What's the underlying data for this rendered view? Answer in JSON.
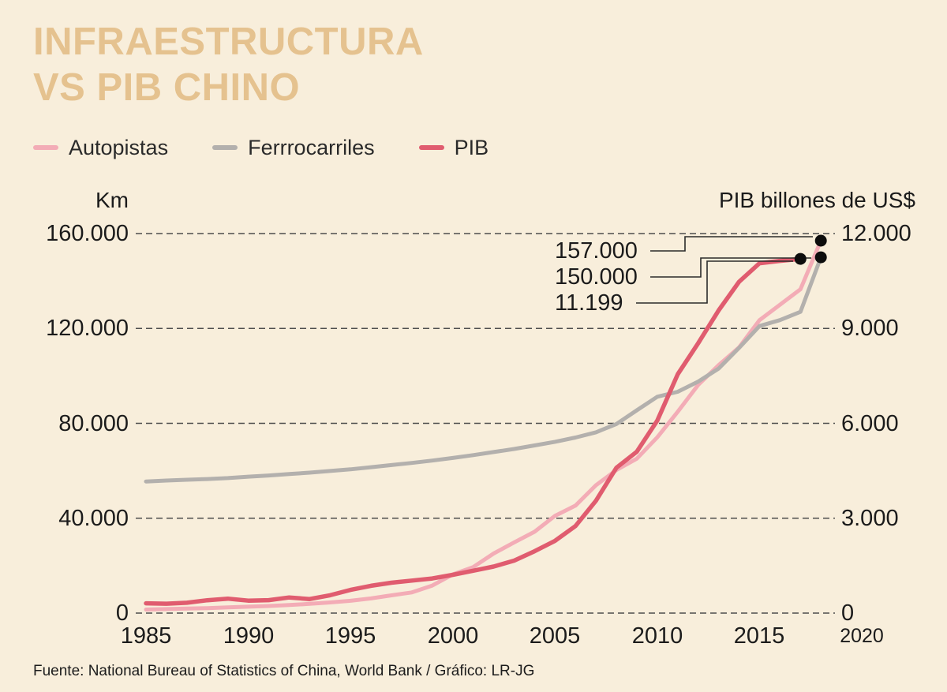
{
  "title": {
    "line1": "INFRAESTRUCTURA",
    "line2": "VS PIB CHINO"
  },
  "colors": {
    "background": "#f8eedb",
    "title": "#e5c28f",
    "text": "#1b1b1b",
    "grid": "#4d4d4d",
    "dot": "#0d0d0d"
  },
  "legend": {
    "items": [
      {
        "label": "Autopistas",
        "color": "#f3acb6"
      },
      {
        "label": "Ferrrocarriles",
        "color": "#b3b0ad"
      },
      {
        "label": "PIB",
        "color": "#e05c6f"
      }
    ]
  },
  "footer": {
    "text": "Fuente: National Bureau of Statistics of China, World Bank / Gráfico: LR-JG"
  },
  "chart_data": {
    "type": "line",
    "title": "INFRAESTRUCTURA VS PIB CHINO",
    "grid": {
      "style": "dashed",
      "orientation": "horizontal"
    },
    "x_range": [
      1985,
      2020
    ],
    "x_ticks": [
      1985,
      1990,
      1995,
      2000,
      2005,
      2010,
      2015,
      2020
    ],
    "left_axis": {
      "label": "Km",
      "min": 0,
      "max": 160000,
      "ticks": [
        "160.000",
        "120.000",
        "80.000",
        "40.000",
        "0"
      ]
    },
    "right_axis": {
      "label": "PIB billones de US$",
      "min": 0,
      "max": 12000,
      "ticks": [
        "12.000",
        "9.000",
        "6.000",
        "3.000",
        "0"
      ]
    },
    "series": [
      {
        "name": "Autopistas",
        "axis": "left",
        "color": "#f3acb6",
        "stroke_width": 5,
        "x": [
          1985,
          1986,
          1987,
          1988,
          1989,
          1990,
          1991,
          1992,
          1993,
          1994,
          1995,
          1996,
          1997,
          1998,
          1999,
          2000,
          2001,
          2002,
          2003,
          2004,
          2005,
          2006,
          2007,
          2008,
          2009,
          2010,
          2011,
          2012,
          2013,
          2014,
          2015,
          2016,
          2017,
          2018
        ],
        "values": [
          1500,
          1700,
          1900,
          2100,
          2400,
          2700,
          3000,
          3400,
          3900,
          4500,
          5200,
          6200,
          7500,
          8700,
          11600,
          16300,
          19400,
          25100,
          29800,
          34300,
          41000,
          45300,
          53900,
          60300,
          65100,
          74100,
          84900,
          96200,
          104500,
          112000,
          123500,
          130000,
          136500,
          157000
        ]
      },
      {
        "name": "Ferrrocarriles",
        "axis": "left",
        "color": "#b3b0ad",
        "stroke_width": 5,
        "x": [
          1985,
          1986,
          1987,
          1988,
          1989,
          1990,
          1991,
          1992,
          1993,
          1994,
          1995,
          1996,
          1997,
          1998,
          1999,
          2000,
          2001,
          2002,
          2003,
          2004,
          2005,
          2006,
          2007,
          2008,
          2009,
          2010,
          2011,
          2012,
          2013,
          2014,
          2015,
          2016,
          2017,
          2018
        ],
        "values": [
          55500,
          55900,
          56200,
          56500,
          56900,
          57500,
          58000,
          58600,
          59200,
          59900,
          60600,
          61500,
          62400,
          63300,
          64300,
          65400,
          66600,
          67900,
          69200,
          70700,
          72200,
          74000,
          76200,
          79700,
          85500,
          91200,
          93300,
          97600,
          103100,
          111800,
          121000,
          123500,
          127000,
          150000
        ]
      },
      {
        "name": "PIB",
        "axis": "right",
        "color": "#e05c6f",
        "stroke_width": 5.5,
        "x": [
          1985,
          1986,
          1987,
          1988,
          1989,
          1990,
          1991,
          1992,
          1993,
          1994,
          1995,
          1996,
          1997,
          1998,
          1999,
          2000,
          2001,
          2002,
          2003,
          2004,
          2005,
          2006,
          2007,
          2008,
          2009,
          2010,
          2011,
          2012,
          2013,
          2014,
          2015,
          2016,
          2017
        ],
        "values": [
          309,
          297,
          327,
          407,
          456,
          395,
          410,
          493,
          445,
          564,
          734,
          864,
          961,
          1029,
          1094,
          1211,
          1339,
          1471,
          1660,
          1955,
          2286,
          2752,
          3550,
          4594,
          5102,
          6087,
          7552,
          8532,
          9570,
          10476,
          11062,
          11137,
          11199
        ]
      }
    ],
    "annotations": [
      {
        "label": "157.000",
        "series": "Autopistas"
      },
      {
        "label": "150.000",
        "series": "Ferrrocarriles"
      },
      {
        "label": "11.199",
        "series": "PIB"
      }
    ]
  }
}
